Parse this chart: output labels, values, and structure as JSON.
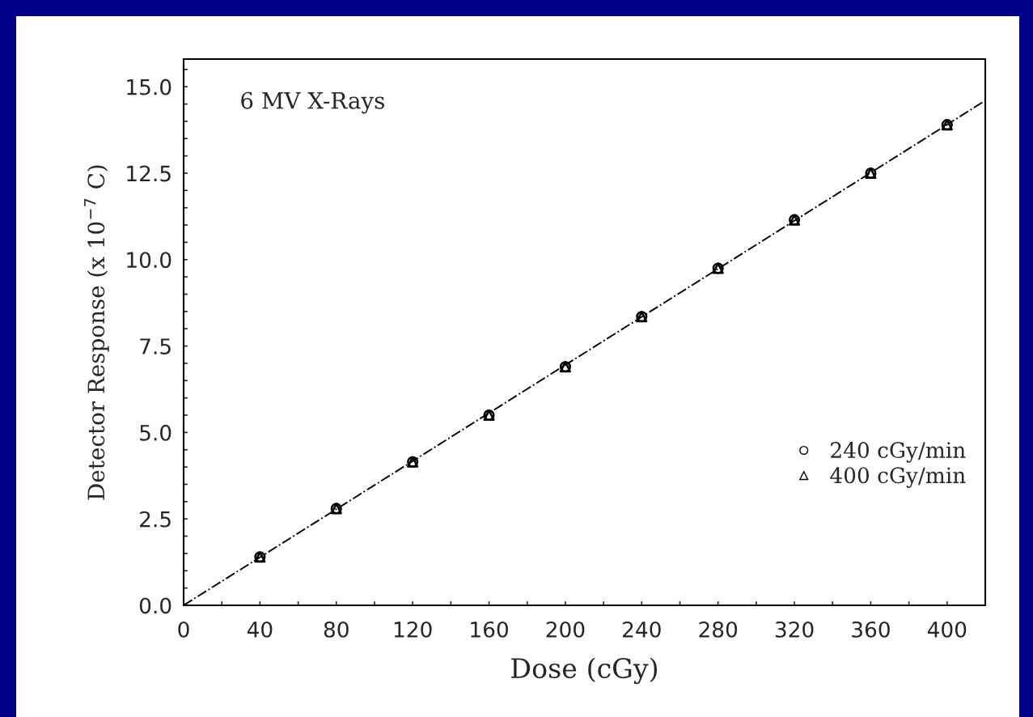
{
  "chart_data": {
    "type": "scatter",
    "xlabel": "Dose (cGy)",
    "ylabel": "Detector Response (x 10$^{−7}$ C)",
    "annotations": [
      "6 MV X-Rays"
    ],
    "series": [
      {
        "name": "240 cGy/min",
        "color": "#000000",
        "marker": "circle",
        "x": [
          40,
          80,
          120,
          160,
          200,
          240,
          280,
          320,
          360,
          400
        ],
        "values": [
          1.4,
          2.8,
          4.15,
          5.5,
          6.9,
          8.35,
          9.75,
          11.15,
          12.5,
          13.9
        ]
      },
      {
        "name": "400 cGy/min",
        "color": "#000000",
        "marker": "triangle",
        "x": [
          40,
          80,
          120,
          160,
          200,
          240,
          280,
          320,
          360,
          400
        ],
        "values": [
          1.4,
          2.8,
          4.15,
          5.5,
          6.9,
          8.35,
          9.75,
          11.15,
          12.5,
          13.9
        ]
      },
      {
        "type": "line",
        "color": "#000000",
        "line_style": "dashdot",
        "x": [
          0,
          420
        ],
        "values": [
          0,
          14.6
        ]
      }
    ],
    "xlim": [
      0,
      420
    ],
    "ylim": [
      0,
      15.8
    ],
    "xticks": [
      0,
      {
        "value": 20,
        "label": null
      },
      40,
      {
        "value": 60,
        "label": null
      },
      80,
      {
        "value": 100,
        "label": null
      },
      120,
      {
        "value": 140,
        "label": null
      },
      160,
      {
        "value": 180,
        "label": null
      },
      200,
      {
        "value": 220,
        "label": null
      },
      240,
      {
        "value": 260,
        "label": null
      },
      280,
      {
        "value": 300,
        "label": null
      },
      320,
      {
        "value": 340,
        "label": null
      },
      360,
      {
        "value": 380,
        "label": null
      },
      400
    ],
    "yticks": [
      {
        "value": 0,
        "label": "0.0"
      },
      {
        "value": 0.5,
        "label": null
      },
      {
        "value": 1,
        "label": null
      },
      {
        "value": 1.5,
        "label": null
      },
      {
        "value": 2,
        "label": null
      },
      2.5,
      {
        "value": 3,
        "label": null
      },
      {
        "value": 3.5,
        "label": null
      },
      {
        "value": 4,
        "label": null
      },
      {
        "value": 4.5,
        "label": null
      },
      {
        "value": 5,
        "label": "5.0"
      },
      {
        "value": 5.5,
        "label": null
      },
      {
        "value": 6,
        "label": null
      },
      {
        "value": 6.5,
        "label": null
      },
      {
        "value": 7,
        "label": null
      },
      7.5,
      {
        "value": 8,
        "label": null
      },
      {
        "value": 8.5,
        "label": null
      },
      {
        "value": 9,
        "label": null
      },
      {
        "value": 9.5,
        "label": null
      },
      {
        "value": 10,
        "label": "10.0"
      },
      {
        "value": 10.5,
        "label": null
      },
      {
        "value": 11,
        "label": null
      },
      {
        "value": 11.5,
        "label": null
      },
      {
        "value": 12,
        "label": null
      },
      12.5,
      {
        "value": 13,
        "label": null
      },
      {
        "value": 13.5,
        "label": null
      },
      {
        "value": 14,
        "label": null
      },
      {
        "value": 14.5,
        "label": null
      },
      {
        "value": 15,
        "label": "15.0"
      },
      {
        "value": 15.5,
        "label": null
      }
    ],
    "grid": false,
    "legend": "bottom right"
  }
}
